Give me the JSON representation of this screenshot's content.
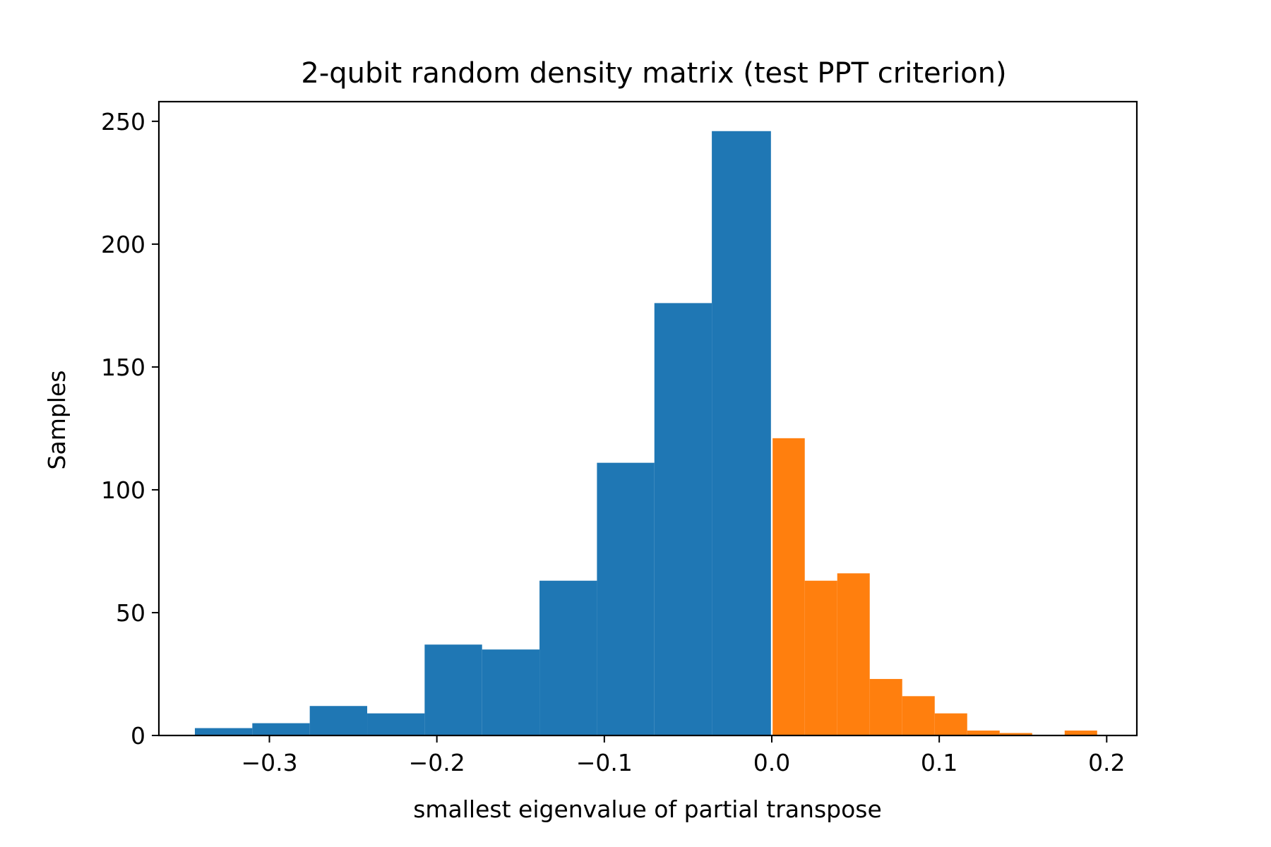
{
  "chart_data": {
    "type": "bar",
    "title": "2-qubit random density matrix (test PPT criterion)",
    "xlabel": "smallest eigenvalue of partial transpose",
    "ylabel": "Samples",
    "xlim": [
      -0.366,
      0.218
    ],
    "ylim": [
      0,
      258
    ],
    "xticks": [
      {
        "value": -0.3,
        "label": "−0.3"
      },
      {
        "value": -0.2,
        "label": "−0.2"
      },
      {
        "value": -0.1,
        "label": "−0.1"
      },
      {
        "value": 0.0,
        "label": "0.0"
      },
      {
        "value": 0.1,
        "label": "0.1"
      },
      {
        "value": 0.2,
        "label": "0.2"
      }
    ],
    "yticks": [
      {
        "value": 0,
        "label": "0"
      },
      {
        "value": 50,
        "label": "50"
      },
      {
        "value": 100,
        "label": "100"
      },
      {
        "value": 150,
        "label": "150"
      },
      {
        "value": 200,
        "label": "200"
      },
      {
        "value": 250,
        "label": "250"
      }
    ],
    "grid": false,
    "series": [
      {
        "color": "#1f77b4",
        "bins": [
          {
            "x0": -0.3445,
            "x1": -0.3102,
            "count": 3
          },
          {
            "x0": -0.3102,
            "x1": -0.2759,
            "count": 5
          },
          {
            "x0": -0.2759,
            "x1": -0.2416,
            "count": 12
          },
          {
            "x0": -0.2416,
            "x1": -0.2073,
            "count": 9
          },
          {
            "x0": -0.2073,
            "x1": -0.173,
            "count": 37
          },
          {
            "x0": -0.173,
            "x1": -0.1387,
            "count": 35
          },
          {
            "x0": -0.1387,
            "x1": -0.1044,
            "count": 63
          },
          {
            "x0": -0.1044,
            "x1": -0.0701,
            "count": 111
          },
          {
            "x0": -0.0701,
            "x1": -0.0358,
            "count": 176
          },
          {
            "x0": -0.0358,
            "x1": -0.0005,
            "count": 246
          }
        ]
      },
      {
        "color": "#ff7f0e",
        "bins": [
          {
            "x0": 0.0005,
            "x1": 0.0197,
            "count": 121
          },
          {
            "x0": 0.0197,
            "x1": 0.0391,
            "count": 63
          },
          {
            "x0": 0.0391,
            "x1": 0.0585,
            "count": 66
          },
          {
            "x0": 0.0585,
            "x1": 0.0779,
            "count": 23
          },
          {
            "x0": 0.0779,
            "x1": 0.0973,
            "count": 16
          },
          {
            "x0": 0.0973,
            "x1": 0.1167,
            "count": 9
          },
          {
            "x0": 0.1167,
            "x1": 0.1361,
            "count": 2
          },
          {
            "x0": 0.1361,
            "x1": 0.1555,
            "count": 1
          },
          {
            "x0": 0.1555,
            "x1": 0.1749,
            "count": 0
          },
          {
            "x0": 0.1749,
            "x1": 0.1943,
            "count": 2
          }
        ]
      }
    ]
  }
}
